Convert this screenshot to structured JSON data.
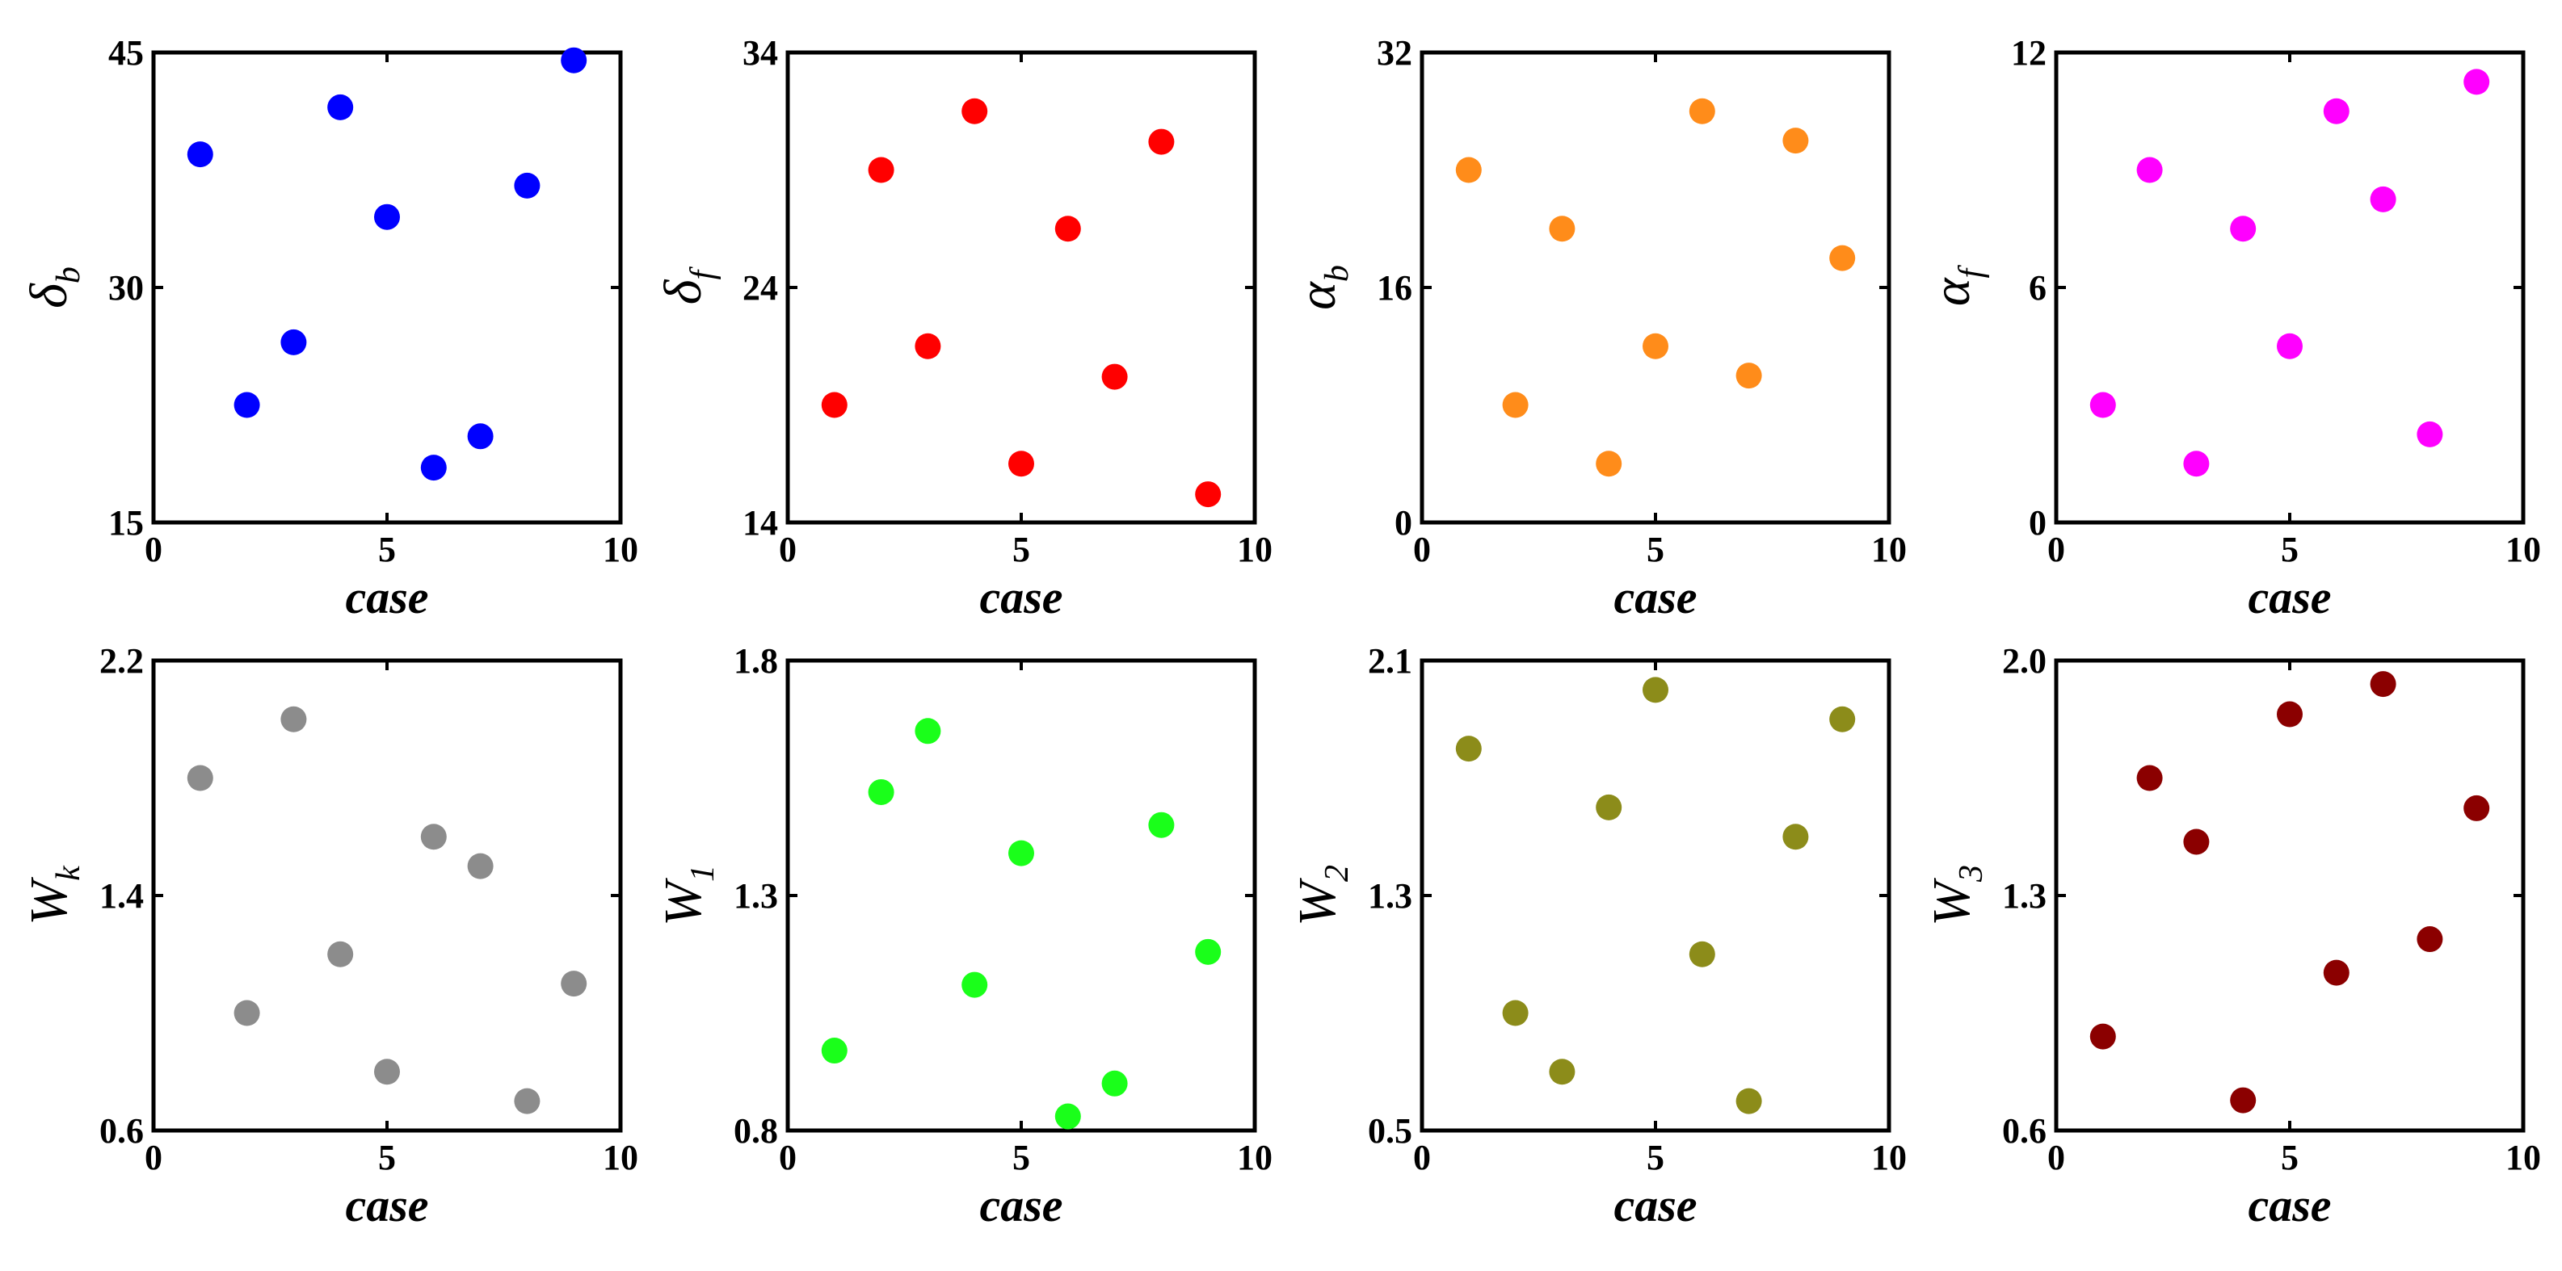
{
  "chart_data": [
    {
      "type": "scatter",
      "xlabel": "case",
      "ylabel": {
        "main": "δ",
        "sub": "b"
      },
      "xlim": [
        0,
        10
      ],
      "ylim": [
        15,
        45
      ],
      "xticks": [
        "0",
        "5",
        "10"
      ],
      "yticks": [
        "15",
        "30",
        "45"
      ],
      "color": "#0000ff",
      "x": [
        1,
        2,
        3,
        4,
        5,
        6,
        7,
        8,
        9
      ],
      "y": [
        38.5,
        22.5,
        26.5,
        41.5,
        34.5,
        18.5,
        20.5,
        36.5,
        44.5
      ]
    },
    {
      "type": "scatter",
      "xlabel": "case",
      "ylabel": {
        "main": "δ",
        "sub": "f"
      },
      "xlim": [
        0,
        10
      ],
      "ylim": [
        14,
        34
      ],
      "xticks": [
        "0",
        "5",
        "10"
      ],
      "yticks": [
        "14",
        "24",
        "34"
      ],
      "color": "#ff0000",
      "x": [
        1,
        2,
        3,
        4,
        5,
        6,
        7,
        8,
        9
      ],
      "y": [
        19,
        29,
        21.5,
        31.5,
        16.5,
        26.5,
        20.2,
        30.2,
        15.2
      ]
    },
    {
      "type": "scatter",
      "xlabel": "case",
      "ylabel": {
        "main": "α",
        "sub": "b"
      },
      "xlim": [
        0,
        10
      ],
      "ylim": [
        0,
        32
      ],
      "xticks": [
        "0",
        "5",
        "10"
      ],
      "yticks": [
        "0",
        "16",
        "32"
      ],
      "color": "#ff8c1a",
      "x": [
        1,
        2,
        3,
        4,
        5,
        6,
        7,
        8,
        9
      ],
      "y": [
        24,
        8,
        20,
        4,
        12,
        28,
        10,
        26,
        18
      ]
    },
    {
      "type": "scatter",
      "xlabel": "case",
      "ylabel": {
        "main": "α",
        "sub": "f"
      },
      "xlim": [
        0,
        10
      ],
      "ylim": [
        0,
        12
      ],
      "xticks": [
        "0",
        "5",
        "10"
      ],
      "yticks": [
        "0",
        "6",
        "12"
      ],
      "color": "#ff00ff",
      "x": [
        1,
        2,
        3,
        4,
        5,
        6,
        7,
        8,
        9
      ],
      "y": [
        3,
        9,
        1.5,
        7.5,
        4.5,
        10.5,
        8.25,
        2.25,
        11.25
      ]
    },
    {
      "type": "scatter",
      "xlabel": "case",
      "ylabel": {
        "main": "W",
        "sub": "k"
      },
      "xlim": [
        0,
        10
      ],
      "ylim": [
        0.6,
        2.2
      ],
      "xticks": [
        "0",
        "5",
        "10"
      ],
      "yticks": [
        "0.6",
        "1.4",
        "2.2"
      ],
      "color": "#8c8c8c",
      "x": [
        1,
        2,
        3,
        4,
        5,
        6,
        7,
        8,
        9
      ],
      "y": [
        1.8,
        1.0,
        2.0,
        1.2,
        0.8,
        1.6,
        1.5,
        0.7,
        1.1
      ]
    },
    {
      "type": "scatter",
      "xlabel": "case",
      "ylabel": {
        "main": "W",
        "sub": "1"
      },
      "xlim": [
        0,
        10
      ],
      "ylim": [
        0.8,
        1.8
      ],
      "xticks": [
        "0",
        "5",
        "10"
      ],
      "yticks": [
        "0.8",
        "1.3",
        "1.8"
      ],
      "color": "#1aff1a",
      "x": [
        1,
        2,
        3,
        4,
        5,
        6,
        7,
        8,
        9
      ],
      "y": [
        0.97,
        1.52,
        1.65,
        1.11,
        1.39,
        0.83,
        0.9,
        1.45,
        1.18
      ]
    },
    {
      "type": "scatter",
      "xlabel": "case",
      "ylabel": {
        "main": "W",
        "sub": "2"
      },
      "xlim": [
        0,
        10
      ],
      "ylim": [
        0.5,
        2.1
      ],
      "xticks": [
        "0",
        "5",
        "10"
      ],
      "yticks": [
        "0.5",
        "1.3",
        "2.1"
      ],
      "color": "#8c8c1a",
      "x": [
        1,
        2,
        3,
        4,
        5,
        6,
        7,
        8,
        9
      ],
      "y": [
        1.8,
        0.9,
        0.7,
        1.6,
        2.0,
        1.1,
        0.6,
        1.5,
        1.9
      ]
    },
    {
      "type": "scatter",
      "xlabel": "case",
      "ylabel": {
        "main": "W",
        "sub": "3"
      },
      "xlim": [
        0,
        10
      ],
      "ylim": [
        0.6,
        2.0
      ],
      "xticks": [
        "0",
        "5",
        "10"
      ],
      "yticks": [
        "0.6",
        "1.3",
        "2.0"
      ],
      "color": "#8b0000",
      "x": [
        1,
        2,
        3,
        4,
        5,
        6,
        7,
        8,
        9
      ],
      "y": [
        0.88,
        1.65,
        1.46,
        0.69,
        1.84,
        1.07,
        1.93,
        1.17,
        1.56
      ]
    }
  ]
}
